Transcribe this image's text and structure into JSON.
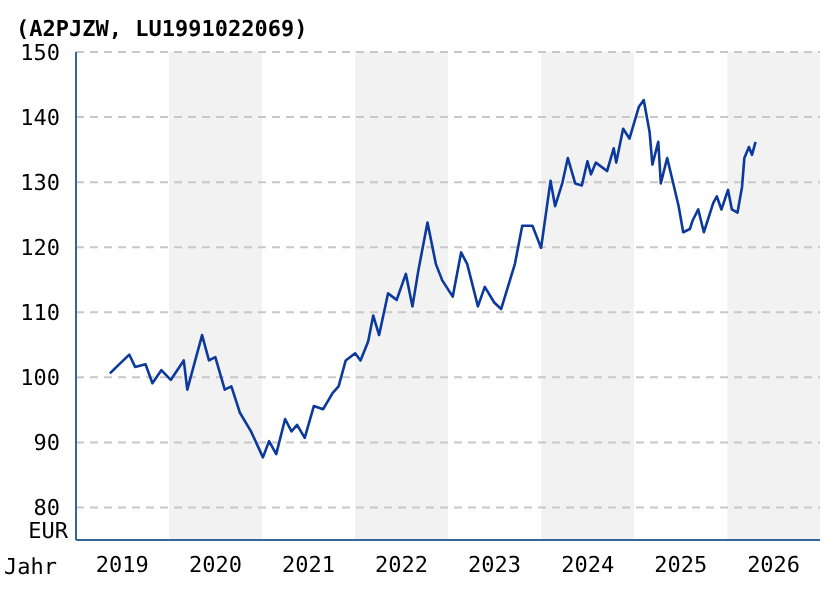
{
  "chart_data": {
    "type": "line",
    "title": "(A2PJZW, LU1991022069)",
    "xlabel": "Jahr",
    "ylabel": "EUR",
    "x": [
      "2019-05-14",
      "2019-07-29",
      "2019-08-21",
      "2019-10-01",
      "2019-10-28",
      "2019-12-02",
      "2020-01-08",
      "2020-02-28",
      "2020-03-13",
      "2020-05-10",
      "2020-06-06",
      "2020-07-01",
      "2020-08-07",
      "2020-09-02",
      "2020-10-05",
      "2020-11-18",
      "2021-01-04",
      "2021-01-28",
      "2021-02-25",
      "2021-04-01",
      "2021-04-26",
      "2021-05-18",
      "2021-06-17",
      "2021-07-23",
      "2021-08-28",
      "2021-10-05",
      "2021-10-28",
      "2021-11-25",
      "2022-01-01",
      "2022-01-22",
      "2022-02-21",
      "2022-03-13",
      "2022-04-05",
      "2022-05-10",
      "2022-06-13",
      "2022-07-19",
      "2022-08-14",
      "2022-09-06",
      "2022-10-12",
      "2022-11-14",
      "2022-12-09",
      "2023-01-19",
      "2023-02-21",
      "2023-03-17",
      "2023-04-28",
      "2023-05-25",
      "2023-07-01",
      "2023-07-28",
      "2023-09-20",
      "2023-10-19",
      "2023-11-28",
      "2024-01-01",
      "2024-02-07",
      "2024-02-25",
      "2024-03-24",
      "2024-04-15",
      "2024-05-14",
      "2024-06-09",
      "2024-07-01",
      "2024-07-15",
      "2024-08-03",
      "2024-09-16",
      "2024-10-12",
      "2024-10-22",
      "2024-11-18",
      "2024-12-13",
      "2025-01-19",
      "2025-02-07",
      "2025-03-02",
      "2025-03-13",
      "2025-04-05",
      "2025-04-15",
      "2025-05-10",
      "2025-06-06",
      "2025-06-24",
      "2025-07-12",
      "2025-08-07",
      "2025-08-18",
      "2025-09-09",
      "2025-10-01",
      "2025-11-07",
      "2025-11-21",
      "2025-12-09",
      "2026-01-04",
      "2026-01-19",
      "2026-02-10",
      "2026-02-28",
      "2026-03-09",
      "2026-03-27",
      "2026-04-08",
      "2026-04-22"
    ],
    "series": [
      {
        "color": "#0b3a9c",
        "values": [
          100.6,
          103.5,
          101.6,
          102.0,
          99.1,
          101.1,
          99.6,
          102.6,
          98.1,
          106.5,
          102.6,
          103.1,
          98.1,
          98.6,
          94.6,
          91.7,
          87.7,
          90.2,
          88.2,
          93.6,
          91.7,
          92.7,
          90.7,
          95.6,
          95.1,
          97.6,
          98.6,
          102.6,
          103.7,
          102.6,
          105.5,
          109.5,
          106.5,
          112.9,
          111.9,
          115.9,
          110.9,
          116.4,
          123.8,
          117.4,
          114.9,
          112.4,
          119.2,
          117.4,
          110.9,
          113.9,
          111.5,
          110.5,
          117.4,
          123.3,
          123.3,
          119.9,
          130.2,
          126.3,
          129.8,
          133.7,
          129.8,
          129.5,
          133.2,
          131.2,
          133.0,
          131.7,
          135.2,
          133.0,
          138.2,
          136.7,
          141.6,
          142.6,
          137.7,
          132.7,
          136.2,
          129.8,
          133.7,
          129.3,
          126.3,
          122.3,
          122.8,
          124.1,
          125.8,
          122.3,
          126.8,
          127.8,
          125.8,
          128.8,
          125.8,
          125.3,
          129.3,
          133.7,
          135.4,
          134.2,
          136.2
        ]
      }
    ],
    "xlim": [
      "2019-01-01",
      "2026-12-31"
    ],
    "xticks": [
      {
        "value": "2019-07-02",
        "label": "2019"
      },
      {
        "value": "2020-07-02",
        "label": "2020"
      },
      {
        "value": "2021-07-02",
        "label": "2021"
      },
      {
        "value": "2022-07-02",
        "label": "2022"
      },
      {
        "value": "2023-07-02",
        "label": "2023"
      },
      {
        "value": "2024-07-02",
        "label": "2024"
      },
      {
        "value": "2025-07-02",
        "label": "2025"
      },
      {
        "value": "2026-07-02",
        "label": "2026"
      }
    ],
    "ylim": [
      75,
      150
    ],
    "yticks": [
      80,
      90,
      100,
      110,
      120,
      130,
      140,
      150
    ],
    "bands": [
      {
        "axis": "x",
        "from": "2020-01-01",
        "to": "2020-12-31",
        "color": "#f2f2f2"
      },
      {
        "axis": "x",
        "from": "2022-01-01",
        "to": "2022-12-31",
        "color": "#f2f2f2"
      },
      {
        "axis": "x",
        "from": "2024-01-01",
        "to": "2024-12-31",
        "color": "#f2f2f2"
      },
      {
        "axis": "x",
        "from": "2026-01-01",
        "to": "2026-12-31",
        "color": "#f2f2f2"
      }
    ],
    "grid": "y"
  }
}
